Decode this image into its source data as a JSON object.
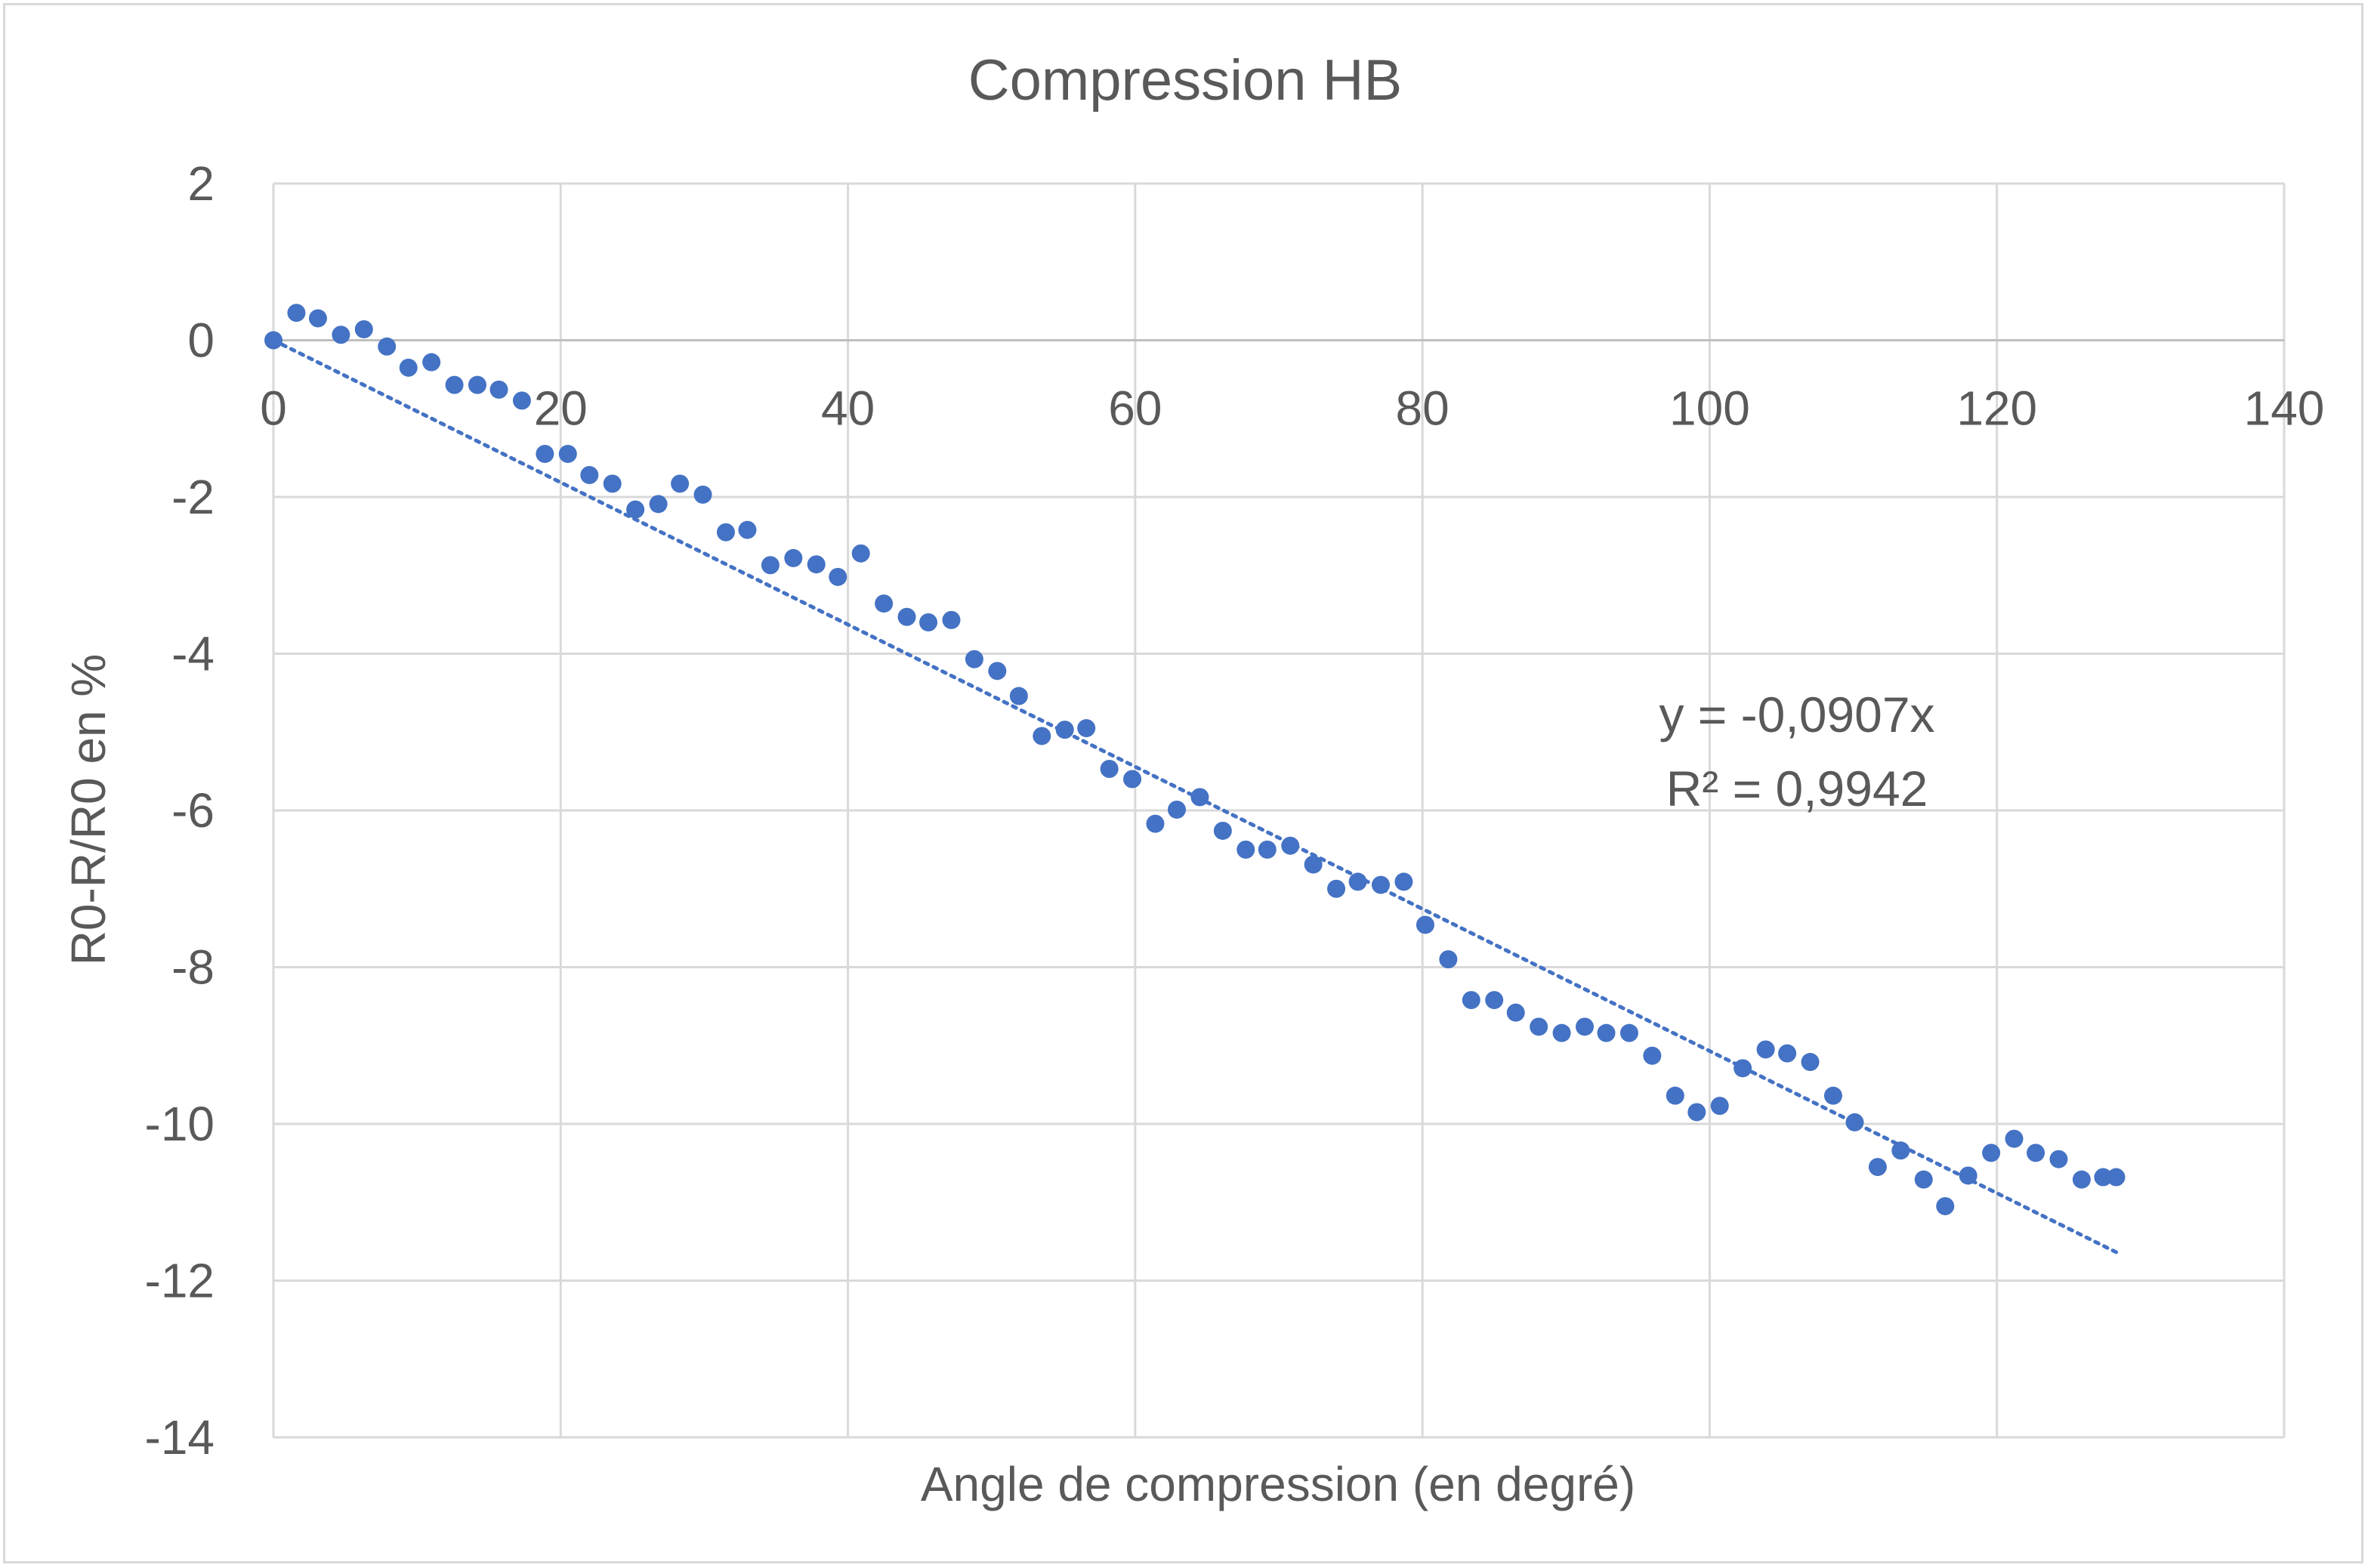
{
  "chart_data": {
    "type": "scatter",
    "title": "Compression HB",
    "xlabel": "Angle de compression (en degré)",
    "ylabel": "R0-R/R0 en %",
    "xlim": [
      0,
      140
    ],
    "ylim": [
      -14,
      2
    ],
    "xticks": [
      "0",
      "20",
      "40",
      "60",
      "80",
      "100",
      "120",
      "140"
    ],
    "yticks": [
      "2",
      "0",
      "-2",
      "-4",
      "-6",
      "-8",
      "-10",
      "-12",
      "-14"
    ],
    "grid": true,
    "marker_color": "#4472c4",
    "trendline": {
      "type": "linear",
      "slope": -0.0907,
      "intercept": 0,
      "x_range": [
        0,
        128.3
      ],
      "style": "dotted",
      "color": "#4472c4",
      "equation": "y = -0,0907x",
      "r_squared": "R² = 0,9942"
    },
    "series": [
      {
        "points": [
          [
            0.0,
            0.0
          ],
          [
            1.6,
            0.35
          ],
          [
            3.1,
            0.28
          ],
          [
            4.7,
            0.07
          ],
          [
            6.3,
            0.14
          ],
          [
            7.9,
            -0.08
          ],
          [
            9.4,
            -0.35
          ],
          [
            11.0,
            -0.28
          ],
          [
            12.6,
            -0.57
          ],
          [
            14.2,
            -0.57
          ],
          [
            15.7,
            -0.63
          ],
          [
            17.3,
            -0.77
          ],
          [
            18.9,
            -1.45
          ],
          [
            20.5,
            -1.45
          ],
          [
            22.0,
            -1.72
          ],
          [
            23.6,
            -1.83
          ],
          [
            25.2,
            -2.16
          ],
          [
            26.8,
            -2.09
          ],
          [
            28.3,
            -1.83
          ],
          [
            29.9,
            -1.97
          ],
          [
            31.5,
            -2.45
          ],
          [
            33.0,
            -2.42
          ],
          [
            34.6,
            -2.87
          ],
          [
            36.2,
            -2.78
          ],
          [
            37.8,
            -2.86
          ],
          [
            39.3,
            -3.02
          ],
          [
            40.9,
            -2.72
          ],
          [
            42.5,
            -3.36
          ],
          [
            44.1,
            -3.53
          ],
          [
            45.6,
            -3.6
          ],
          [
            47.2,
            -3.57
          ],
          [
            48.8,
            -4.07
          ],
          [
            50.4,
            -4.22
          ],
          [
            51.9,
            -4.54
          ],
          [
            53.5,
            -5.05
          ],
          [
            55.1,
            -4.97
          ],
          [
            56.6,
            -4.95
          ],
          [
            58.2,
            -5.47
          ],
          [
            59.8,
            -5.6
          ],
          [
            61.4,
            -6.17
          ],
          [
            62.9,
            -5.99
          ],
          [
            64.5,
            -5.83
          ],
          [
            66.1,
            -6.26
          ],
          [
            67.7,
            -6.5
          ],
          [
            69.2,
            -6.5
          ],
          [
            70.8,
            -6.45
          ],
          [
            72.4,
            -6.69
          ],
          [
            74.0,
            -7.0
          ],
          [
            75.5,
            -6.91
          ],
          [
            77.1,
            -6.95
          ],
          [
            78.7,
            -6.91
          ],
          [
            80.2,
            -7.46
          ],
          [
            81.8,
            -7.9
          ],
          [
            83.4,
            -8.42
          ],
          [
            85.0,
            -8.42
          ],
          [
            86.5,
            -8.58
          ],
          [
            88.1,
            -8.76
          ],
          [
            89.7,
            -8.84
          ],
          [
            91.3,
            -8.76
          ],
          [
            92.8,
            -8.84
          ],
          [
            94.4,
            -8.84
          ],
          [
            96.0,
            -9.13
          ],
          [
            97.6,
            -9.64
          ],
          [
            99.1,
            -9.85
          ],
          [
            100.7,
            -9.77
          ],
          [
            102.3,
            -9.29
          ],
          [
            103.9,
            -9.05
          ],
          [
            105.4,
            -9.1
          ],
          [
            107.0,
            -9.21
          ],
          [
            108.6,
            -9.64
          ],
          [
            110.1,
            -9.98
          ],
          [
            111.7,
            -10.55
          ],
          [
            113.3,
            -10.34
          ],
          [
            114.9,
            -10.71
          ],
          [
            116.4,
            -11.05
          ],
          [
            118.0,
            -10.66
          ],
          [
            119.6,
            -10.37
          ],
          [
            121.2,
            -10.19
          ],
          [
            122.7,
            -10.37
          ],
          [
            124.3,
            -10.45
          ],
          [
            125.9,
            -10.71
          ],
          [
            127.4,
            -10.68
          ],
          [
            128.3,
            -10.68
          ]
        ]
      }
    ]
  }
}
